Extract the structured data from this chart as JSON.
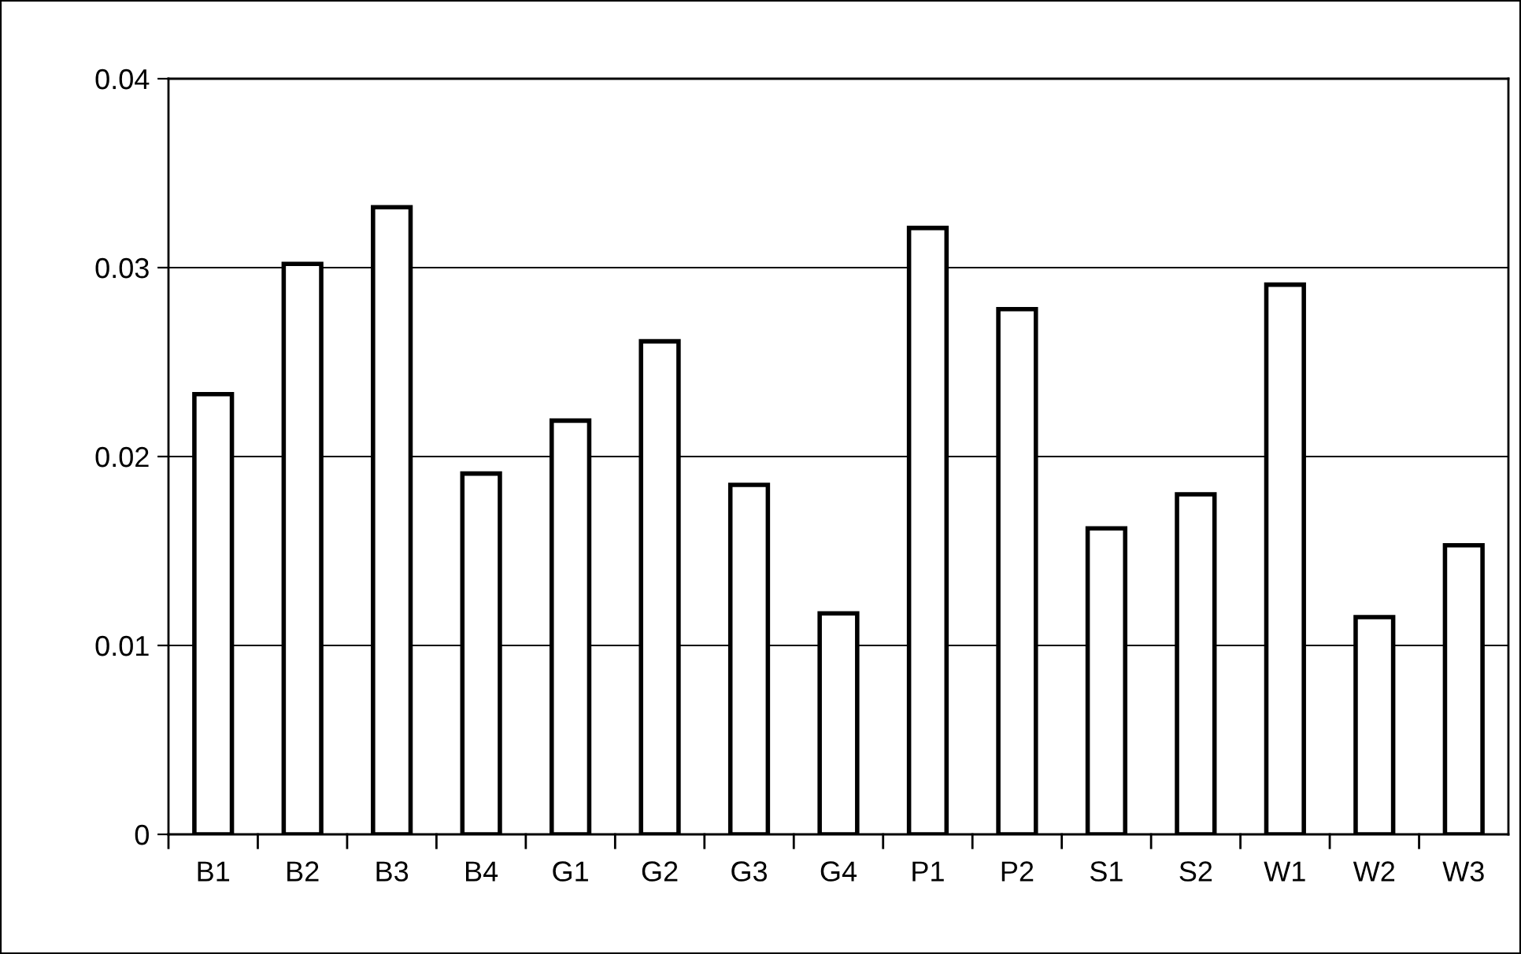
{
  "chart_data": {
    "type": "bar",
    "categories": [
      "B1",
      "B2",
      "B3",
      "B4",
      "G1",
      "G2",
      "G3",
      "G4",
      "P1",
      "P2",
      "S1",
      "S2",
      "W1",
      "W2",
      "W3"
    ],
    "values": [
      0.0233,
      0.0302,
      0.0332,
      0.0191,
      0.0219,
      0.0261,
      0.0185,
      0.0117,
      0.0321,
      0.0278,
      0.0162,
      0.018,
      0.0291,
      0.0115,
      0.0153
    ],
    "color": "#ffffff",
    "ylim": [
      0,
      0.04
    ],
    "yticks": [
      0,
      0.01,
      0.02,
      0.03,
      0.04
    ],
    "grid": "y",
    "legend": false
  }
}
